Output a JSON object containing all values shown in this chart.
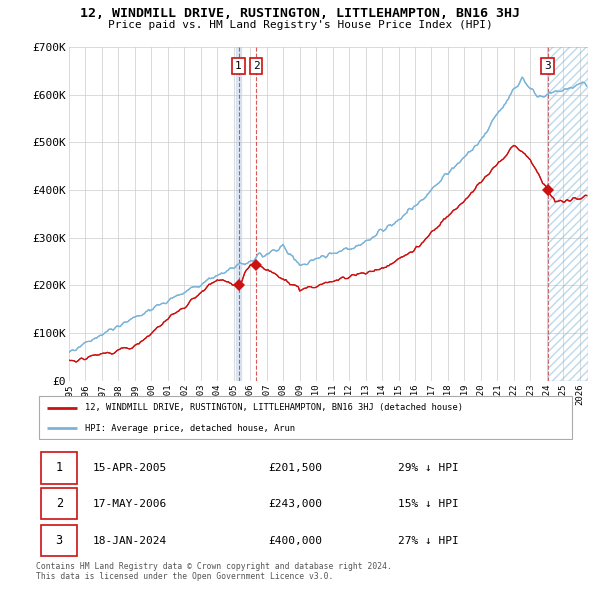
{
  "title": "12, WINDMILL DRIVE, RUSTINGTON, LITTLEHAMPTON, BN16 3HJ",
  "subtitle": "Price paid vs. HM Land Registry's House Price Index (HPI)",
  "hpi_color": "#7ab4d8",
  "price_color": "#cc1111",
  "xlim_start": 1995,
  "xlim_end": 2026.5,
  "ylim": [
    0,
    700000
  ],
  "ytick_labels": [
    "£0",
    "£100K",
    "£200K",
    "£300K",
    "£400K",
    "£500K",
    "£600K",
    "£700K"
  ],
  "ytick_vals": [
    0,
    100000,
    200000,
    300000,
    400000,
    500000,
    600000,
    700000
  ],
  "xtick_years": [
    1995,
    1996,
    1997,
    1998,
    1999,
    2000,
    2001,
    2002,
    2003,
    2004,
    2005,
    2006,
    2007,
    2008,
    2009,
    2010,
    2011,
    2012,
    2013,
    2014,
    2015,
    2016,
    2017,
    2018,
    2019,
    2020,
    2021,
    2022,
    2023,
    2024,
    2025,
    2026
  ],
  "transactions": [
    {
      "num": 1,
      "date": "15-APR-2005",
      "price": 201500,
      "year": 2005.29,
      "pct": "29% ↓ HPI"
    },
    {
      "num": 2,
      "date": "17-MAY-2006",
      "price": 243000,
      "year": 2006.37,
      "pct": "15% ↓ HPI"
    },
    {
      "num": 3,
      "date": "18-JAN-2024",
      "price": 400000,
      "year": 2024.05,
      "pct": "27% ↓ HPI"
    }
  ],
  "legend_price_label": "12, WINDMILL DRIVE, RUSTINGTON, LITTLEHAMPTON, BN16 3HJ (detached house)",
  "legend_hpi_label": "HPI: Average price, detached house, Arun",
  "footer": "Contains HM Land Registry data © Crown copyright and database right 2024.\nThis data is licensed under the Open Government Licence v3.0.",
  "grid_color": "#cccccc",
  "bg_color": "#ffffff",
  "vline_color": "#cc1111",
  "span1_color": "#aac8e8"
}
